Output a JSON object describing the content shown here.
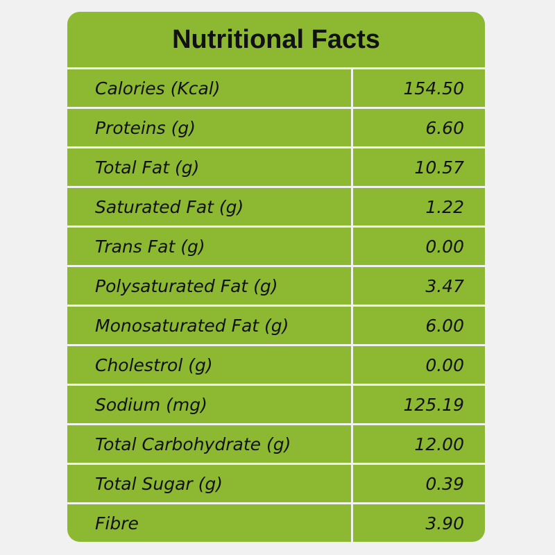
{
  "title": "Nutritional Facts",
  "colors": {
    "accent": "#8cb832",
    "background": "#f1f1f1",
    "text": "#111111"
  },
  "rows": [
    {
      "label": "Calories (Kcal)",
      "value": "154.50"
    },
    {
      "label": "Proteins (g)",
      "value": "6.60"
    },
    {
      "label": "Total Fat (g)",
      "value": "10.57"
    },
    {
      "label": "Saturated Fat (g)",
      "value": "1.22"
    },
    {
      "label": "Trans Fat (g)",
      "value": "0.00"
    },
    {
      "label": "Polysaturated Fat (g)",
      "value": "3.47"
    },
    {
      "label": "Monosaturated Fat (g)",
      "value": "6.00"
    },
    {
      "label": "Cholestrol (g)",
      "value": "0.00"
    },
    {
      "label": "Sodium (mg)",
      "value": "125.19"
    },
    {
      "label": "Total Carbohydrate (g)",
      "value": "12.00"
    },
    {
      "label": "Total Sugar (g)",
      "value": "0.39"
    },
    {
      "label": "Fibre",
      "value": "3.90"
    }
  ]
}
